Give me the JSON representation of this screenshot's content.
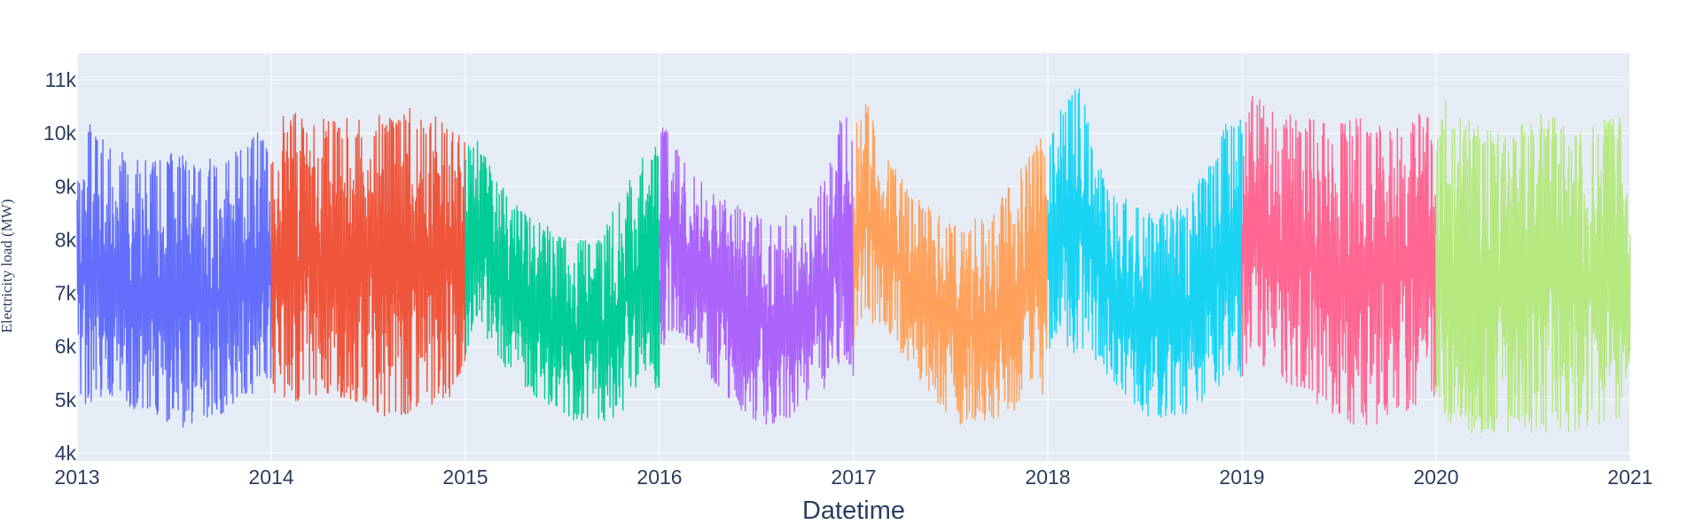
{
  "chart_data": {
    "type": "line",
    "title": "",
    "xlabel": "Datetime",
    "ylabel": "Electricity load (MW)",
    "xlim": [
      2013,
      2021
    ],
    "ylim": [
      3850,
      11500
    ],
    "x_ticks": [
      {
        "value": 2013,
        "label": "2013"
      },
      {
        "value": 2014,
        "label": "2014"
      },
      {
        "value": 2015,
        "label": "2015"
      },
      {
        "value": 2016,
        "label": "2016"
      },
      {
        "value": 2017,
        "label": "2017"
      },
      {
        "value": 2018,
        "label": "2018"
      },
      {
        "value": 2019,
        "label": "2019"
      },
      {
        "value": 2020,
        "label": "2020"
      },
      {
        "value": 2021,
        "label": "2021"
      }
    ],
    "y_ticks": [
      {
        "value": 4000,
        "label": "4k"
      },
      {
        "value": 5000,
        "label": "5k"
      },
      {
        "value": 6000,
        "label": "6k"
      },
      {
        "value": 7000,
        "label": "7k"
      },
      {
        "value": 8000,
        "label": "8k"
      },
      {
        "value": 9000,
        "label": "9k"
      },
      {
        "value": 10000,
        "label": "10k"
      },
      {
        "value": 11000,
        "label": "11k"
      }
    ],
    "grid": true,
    "legend": "none",
    "colors": {
      "plot_bg": "#e5ecf6",
      "grid": "#ffffff",
      "text": "#2a3f5f"
    },
    "series": [
      {
        "name": "2013",
        "color": "#636efa",
        "start": 2013,
        "end": 2014,
        "x": [
          2013.0,
          2013.05,
          2013.15,
          2013.3,
          2013.45,
          2013.55,
          2013.7,
          2013.85,
          2013.95,
          2014.0
        ],
        "low": [
          5200,
          4800,
          5100,
          4800,
          4500,
          4400,
          4600,
          4900,
          5100,
          5400
        ],
        "high": [
          9000,
          10300,
          9800,
          9500,
          9600,
          9700,
          9500,
          9800,
          10100,
          9700
        ]
      },
      {
        "name": "2014",
        "color": "#ef553b",
        "start": 2014,
        "end": 2015,
        "x": [
          2014.0,
          2014.05,
          2014.15,
          2014.3,
          2014.45,
          2014.55,
          2014.7,
          2014.85,
          2014.95,
          2015.0
        ],
        "low": [
          5300,
          4800,
          5000,
          5100,
          4900,
          4700,
          4700,
          4800,
          5000,
          5600
        ],
        "high": [
          9600,
          10400,
          10400,
          10300,
          10300,
          10400,
          10500,
          10400,
          10200,
          9800
        ]
      },
      {
        "name": "2015",
        "color": "#00cc96",
        "start": 2015,
        "end": 2016,
        "x": [
          2015.0,
          2015.05,
          2015.15,
          2015.3,
          2015.45,
          2015.55,
          2015.7,
          2015.85,
          2015.95,
          2016.0
        ],
        "low": [
          5700,
          6600,
          5800,
          5200,
          4800,
          4600,
          4500,
          4900,
          5600,
          4900
        ],
        "high": [
          9700,
          10000,
          9200,
          8500,
          8200,
          8000,
          8200,
          9200,
          9800,
          9700
        ]
      },
      {
        "name": "2016",
        "color": "#ab63fa",
        "start": 2016,
        "end": 2017,
        "x": [
          2016.0,
          2016.05,
          2016.15,
          2016.3,
          2016.45,
          2016.55,
          2016.7,
          2016.85,
          2016.95,
          2017.0
        ],
        "low": [
          5800,
          6300,
          6000,
          5200,
          4700,
          4500,
          4700,
          5200,
          5800,
          5400
        ],
        "high": [
          10200,
          10300,
          9300,
          8800,
          8600,
          8400,
          8500,
          9200,
          10500,
          9900
        ]
      },
      {
        "name": "2017",
        "color": "#ffa15a",
        "start": 2017,
        "end": 2018,
        "x": [
          2017.0,
          2017.05,
          2017.15,
          2017.3,
          2017.45,
          2017.55,
          2017.7,
          2017.85,
          2017.95,
          2018.0
        ],
        "low": [
          6000,
          6500,
          6300,
          5600,
          4800,
          4500,
          4600,
          4800,
          5200,
          5000
        ],
        "high": [
          9900,
          10800,
          9700,
          8900,
          8500,
          8300,
          8500,
          9300,
          10000,
          9800
        ]
      },
      {
        "name": "2018",
        "color": "#19d3f3",
        "start": 2018,
        "end": 2019,
        "x": [
          2018.0,
          2018.05,
          2018.15,
          2018.3,
          2018.45,
          2018.55,
          2018.7,
          2018.85,
          2018.95,
          2019.0
        ],
        "low": [
          5600,
          6200,
          5800,
          5500,
          4800,
          4600,
          4700,
          5100,
          5600,
          5300
        ],
        "high": [
          10000,
          10300,
          11100,
          9000,
          8700,
          8500,
          8700,
          9500,
          10500,
          10300
        ]
      },
      {
        "name": "2019",
        "color": "#ff6692",
        "start": 2019,
        "end": 2020,
        "x": [
          2019.0,
          2019.05,
          2019.15,
          2019.3,
          2019.45,
          2019.55,
          2019.7,
          2019.85,
          2019.95,
          2020.0
        ],
        "low": [
          5300,
          5900,
          5400,
          5200,
          4700,
          4500,
          4500,
          4800,
          5000,
          4900
        ],
        "high": [
          10300,
          10900,
          10400,
          10300,
          10200,
          10300,
          10300,
          10300,
          10400,
          9700
        ]
      },
      {
        "name": "2020",
        "color": "#b6e880",
        "start": 2020,
        "end": 2021,
        "x": [
          2020.0,
          2020.05,
          2020.15,
          2020.3,
          2020.45,
          2020.55,
          2020.7,
          2020.85,
          2020.95,
          2021.0
        ],
        "low": [
          5000,
          4600,
          4400,
          4300,
          4400,
          4300,
          4400,
          4500,
          4600,
          5800
        ],
        "high": [
          9800,
          10600,
          10300,
          10000,
          10200,
          10400,
          10100,
          10300,
          10300,
          8200
        ]
      }
    ]
  }
}
